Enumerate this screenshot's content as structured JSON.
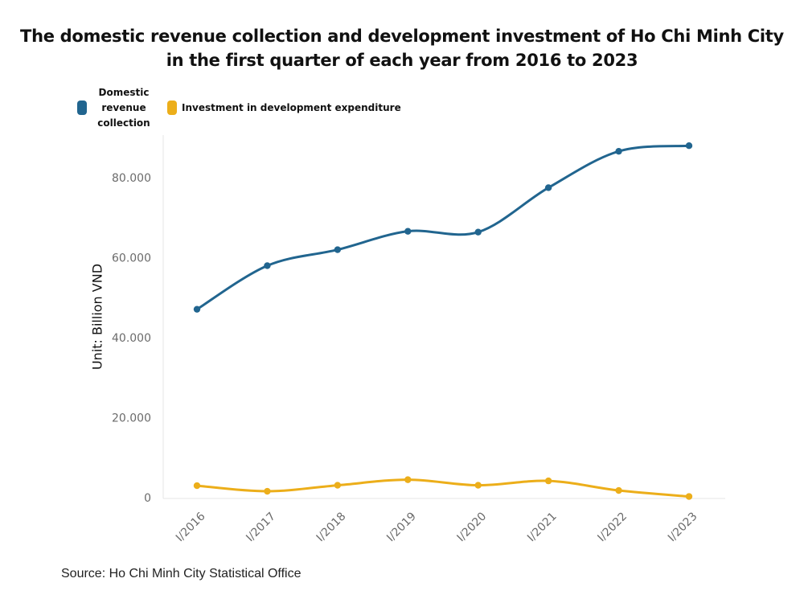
{
  "title_line1": "The domestic revenue collection and development investment of Ho Chi Minh City",
  "title_line2": "in the first quarter of each year from 2016 to 2023",
  "source": "Source: Ho Chi Minh City Statistical Office",
  "chart_data": {
    "type": "line",
    "title": "The domestic revenue collection and development investment of Ho Chi Minh City in the first quarter of each year from 2016 to 2023",
    "xlabel": "",
    "ylabel": "Unit: Billion VND",
    "categories": [
      "I/2016",
      "I/2017",
      "I/2018",
      "I/2019",
      "I/2020",
      "I/2021",
      "I/2022",
      "I/2023"
    ],
    "y_ticks": [
      "0",
      "20.000",
      "40.000",
      "60.000",
      "80.000"
    ],
    "y_tick_values": [
      0,
      20000,
      40000,
      60000,
      80000
    ],
    "ylim": [
      0,
      90000
    ],
    "grid": false,
    "legend_position": "top-left",
    "series": [
      {
        "name": "Domestic revenue collection",
        "color": "#21658f",
        "values": [
          47300,
          58200,
          62200,
          66800,
          66600,
          77700,
          86800,
          88200
        ]
      },
      {
        "name": "Investment in development expenditure",
        "color": "#ecae1a",
        "values": [
          3200,
          1800,
          3300,
          4700,
          3300,
          4400,
          2000,
          500
        ]
      }
    ]
  }
}
